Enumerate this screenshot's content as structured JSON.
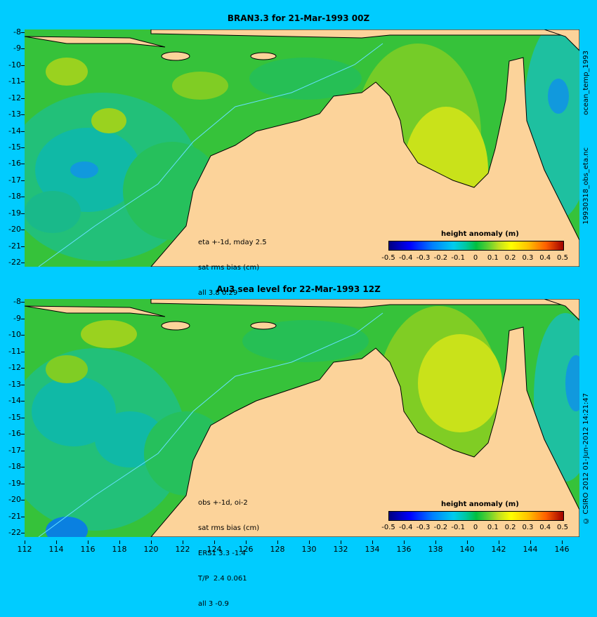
{
  "top_panel": {
    "title": "BRAN3.3 for 21-Mar-1993 00Z",
    "annotation": [
      "eta +-1d, mday 2.5",
      "sat rms bias (cm)",
      "all 3.8 0.29"
    ],
    "colorbar_title": "height anomaly (m)",
    "side_label": "19930318_obs_eta.nc"
  },
  "bottom_panel": {
    "title": "Au3 sea level  for 22-Mar-1993 12Z",
    "annotation": [
      "obs +-1d, oi-2",
      "sat rms bias (cm)",
      "ERS1 3.3 -1.4",
      "T/P  2.4 0.061",
      "all 3 -0.9"
    ],
    "colorbar_title": "height anomaly (m)",
    "side_label": "© CSIRO 2012  01-Jun-2012 14:21:47"
  },
  "side_label_top": "ocean_temp_1993",
  "lat_labels": [
    "-8",
    "-9",
    "-10",
    "-11",
    "-12",
    "-13",
    "-14",
    "-15",
    "-16",
    "-17",
    "-18",
    "-19",
    "-20",
    "-21",
    "-22"
  ],
  "lon_labels": [
    "112",
    "114",
    "116",
    "118",
    "120",
    "122",
    "124",
    "126",
    "128",
    "130",
    "132",
    "134",
    "136",
    "138",
    "140",
    "142",
    "144",
    "146"
  ],
  "colorbar_ticks": [
    "-0.5",
    "-0.4",
    "-0.3",
    "-0.2",
    "-0.1",
    "0",
    "0.1",
    "0.2",
    "0.3",
    "0.4",
    "0.5"
  ],
  "colors": {
    "background": "#00ccff",
    "land": "#fcd39a",
    "ocean_green": "#2ebf3a"
  }
}
